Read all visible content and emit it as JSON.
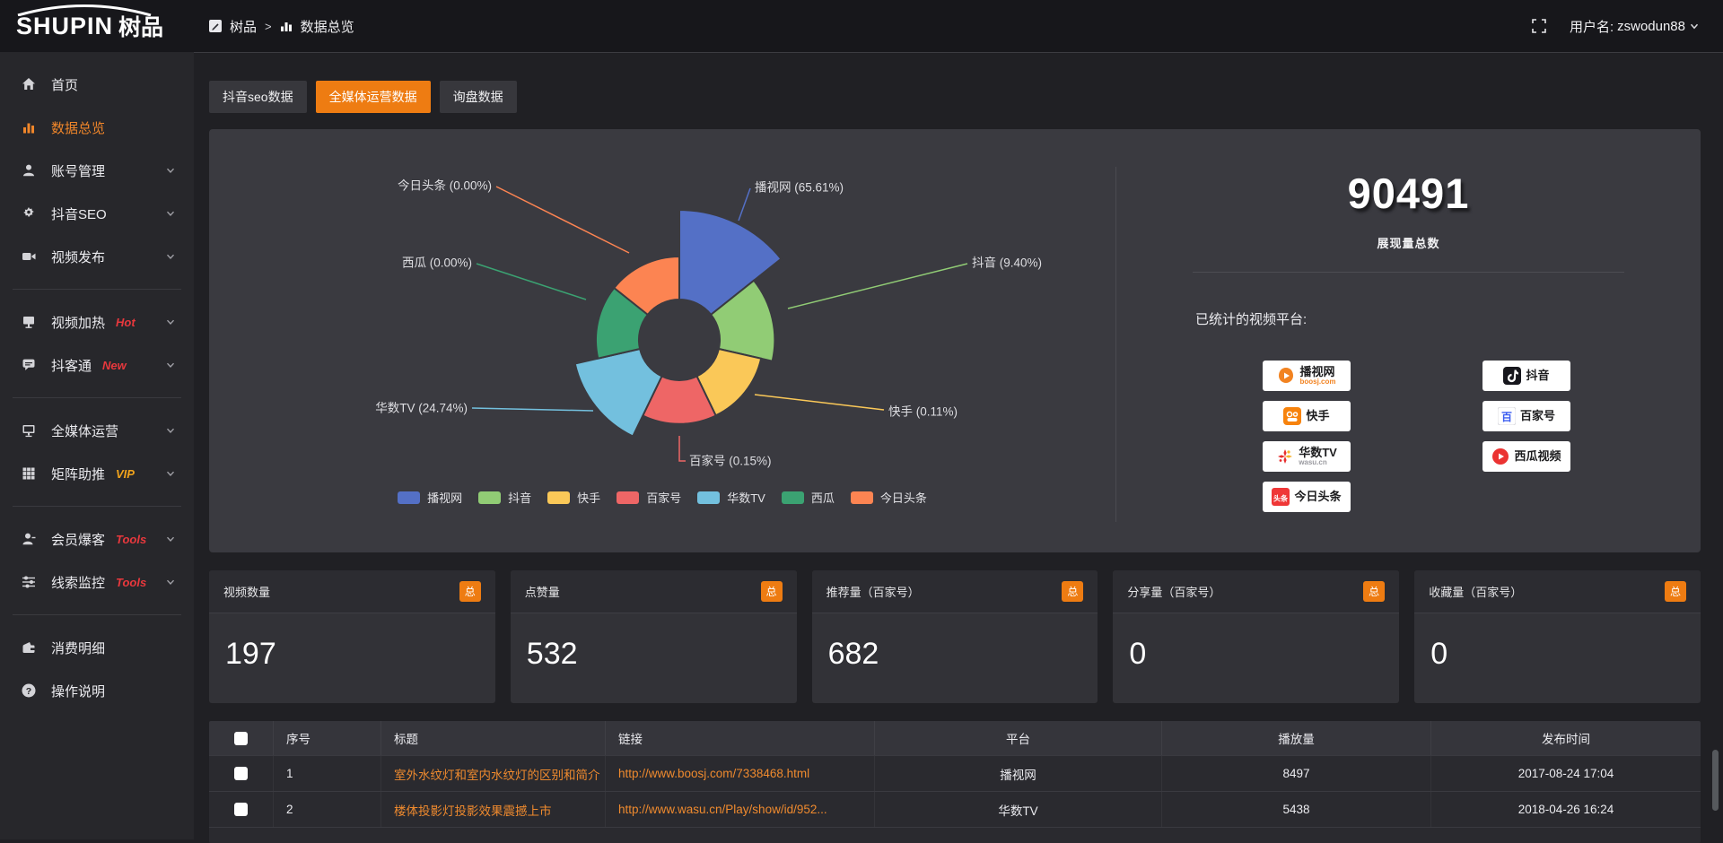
{
  "header": {
    "logo_main": "SHUPIN",
    "logo_cn": "树品",
    "breadcrumb_root": "树品",
    "breadcrumb_sep": ">",
    "breadcrumb_current": "数据总览",
    "user_label": "用户名:",
    "username": "zswodun88"
  },
  "tabs": [
    {
      "label": "抖音seo数据",
      "active": false,
      "key": "douyin-seo-data"
    },
    {
      "label": "全媒体运营数据",
      "active": true,
      "key": "media-operation-data"
    },
    {
      "label": "询盘数据",
      "active": false,
      "key": "inquiry-data"
    }
  ],
  "sidebar": {
    "divider_after": [
      4,
      6,
      8,
      10
    ],
    "items": [
      {
        "key": "home",
        "icon": "home",
        "label": "首页"
      },
      {
        "key": "data-overview",
        "icon": "chart",
        "label": "数据总览",
        "active": true
      },
      {
        "key": "account-manage",
        "icon": "user",
        "label": "账号管理",
        "chevron": true
      },
      {
        "key": "douyin-seo",
        "icon": "gear",
        "label": "抖音SEO",
        "chevron": true
      },
      {
        "key": "video-publish",
        "icon": "video",
        "label": "视频发布",
        "chevron": true
      },
      {
        "key": "video-heat",
        "icon": "screen",
        "label": "视频加热",
        "chevron": true,
        "badge": "Hot",
        "badge_color": "#e8383d"
      },
      {
        "key": "douketong",
        "icon": "chat",
        "label": "抖客通",
        "chevron": true,
        "badge": "New",
        "badge_color": "#e8383d"
      },
      {
        "key": "media-operation",
        "icon": "monitor",
        "label": "全媒体运营",
        "chevron": true
      },
      {
        "key": "matrix-boost",
        "icon": "grid",
        "label": "矩阵助推",
        "chevron": true,
        "badge": "VIP",
        "badge_color": "#f0a31c"
      },
      {
        "key": "member-burst",
        "icon": "member",
        "label": "会员爆客",
        "chevron": true,
        "badge": "Tools",
        "badge_color": "#e8383d"
      },
      {
        "key": "lead-monitor",
        "icon": "sliders",
        "label": "线索监控",
        "chevron": true,
        "badge": "Tools",
        "badge_color": "#e8383d"
      },
      {
        "key": "expense-detail",
        "icon": "wallet",
        "label": "消费明细"
      },
      {
        "key": "help-guide",
        "icon": "help",
        "label": "操作说明"
      }
    ]
  },
  "overview": {
    "total_value": "90491",
    "total_label": "展现量总数",
    "platforms_title": "已统计的视频平台:",
    "platforms": [
      {
        "key": "boosj",
        "name": "播视网",
        "sub": "boosj.com",
        "sub_color": "orange",
        "col": 1,
        "icon": "boosj"
      },
      {
        "key": "kuaishou",
        "name": "快手",
        "col": 1,
        "icon": "kuaishou"
      },
      {
        "key": "wasu",
        "name": "华数TV",
        "sub": "wasu.cn",
        "sub_color": "gray",
        "col": 1,
        "icon": "wasu"
      },
      {
        "key": "toutiao",
        "name": "今日头条",
        "col": 1,
        "icon": "toutiao"
      },
      {
        "key": "douyin",
        "name": "抖音",
        "col": 2,
        "icon": "douyin"
      },
      {
        "key": "baijiahao",
        "name": "百家号",
        "col": 2,
        "icon": "baijiahao"
      },
      {
        "key": "xigua",
        "name": "西瓜视频",
        "col": 2,
        "icon": "xigua"
      }
    ]
  },
  "chart_data": {
    "type": "pie",
    "variant": "rose",
    "title": "",
    "legend_position": "bottom",
    "label_format": "{name} ({percent}%)",
    "items": [
      {
        "key": "boosj",
        "name": "播视网",
        "percent": 65.61,
        "color": "#5470c6"
      },
      {
        "key": "douyin",
        "name": "抖音",
        "percent": 9.4,
        "color": "#91cc75"
      },
      {
        "key": "kuaishou",
        "name": "快手",
        "percent": 0.11,
        "color": "#fac858"
      },
      {
        "key": "baijiahao",
        "name": "百家号",
        "percent": 0.15,
        "color": "#ee6666"
      },
      {
        "key": "wasu",
        "name": "华数TV",
        "percent": 24.74,
        "color": "#73c0de"
      },
      {
        "key": "xigua",
        "name": "西瓜",
        "percent": 0.0,
        "color": "#3ba272"
      },
      {
        "key": "toutiao",
        "name": "今日头条",
        "percent": 0.0,
        "color": "#fc8452"
      }
    ]
  },
  "stat_cards": [
    {
      "key": "video-count",
      "label": "视频数量",
      "badge": "总",
      "value": "197"
    },
    {
      "key": "like-count",
      "label": "点赞量",
      "badge": "总",
      "value": "532"
    },
    {
      "key": "recommend-count",
      "label": "推荐量（百家号）",
      "badge": "总",
      "value": "682"
    },
    {
      "key": "share-count",
      "label": "分享量（百家号）",
      "badge": "总",
      "value": "0"
    },
    {
      "key": "favorite-count",
      "label": "收藏量（百家号）",
      "badge": "总",
      "value": "0"
    }
  ],
  "table": {
    "columns": [
      "序号",
      "标题",
      "链接",
      "平台",
      "播放量",
      "发布时间"
    ],
    "rows": [
      {
        "no": "1",
        "title": "室外水纹灯和室内水纹灯的区别和简介",
        "link": "http://www.boosj.com/7338468.html",
        "platform": "播视网",
        "plays": "8497",
        "published": "2017-08-24 17:04"
      },
      {
        "no": "2",
        "title": "楼体投影灯投影效果震撼上市",
        "link": "http://www.wasu.cn/Play/show/id/952...",
        "platform": "华数TV",
        "plays": "5438",
        "published": "2018-04-26 16:24"
      }
    ]
  },
  "colors": {
    "accent_orange": "#ee7c12",
    "link_orange": "#ef8a2e",
    "badge_red": "#e8383d",
    "badge_vip": "#f0a31c",
    "panel_bg": "#3a3a40"
  }
}
